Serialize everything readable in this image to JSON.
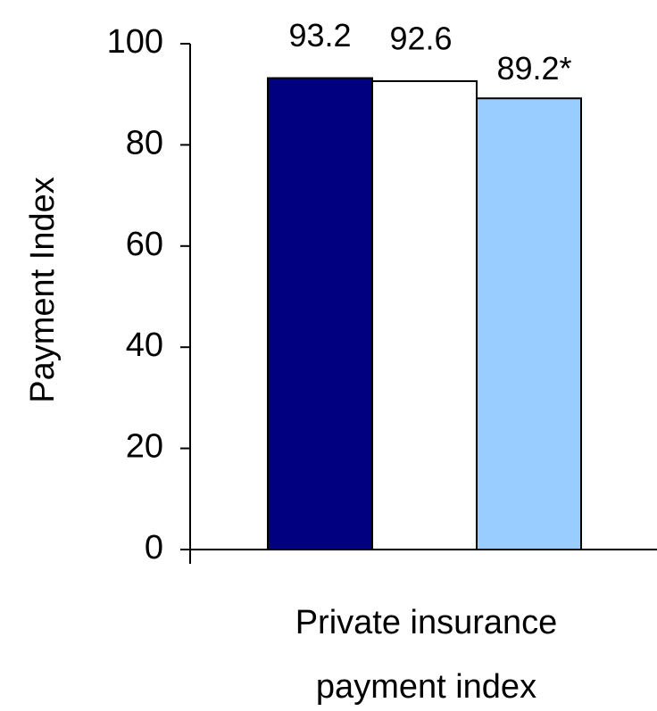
{
  "chart_data": {
    "type": "bar",
    "categories": [
      "Private insurance payment index"
    ],
    "category_lines": [
      "Private insurance",
      "payment index"
    ],
    "series": [
      {
        "values": [
          93.2
        ],
        "label": "93.2",
        "color": "#000080"
      },
      {
        "values": [
          92.6
        ],
        "label": "92.6",
        "color": "#ffffff"
      },
      {
        "values": [
          89.2
        ],
        "label": "89.2*",
        "color": "#99ccff"
      }
    ],
    "title": "",
    "xlabel": "",
    "ylabel": "Payment Index",
    "ylim": [
      0,
      100
    ],
    "yticks": [
      0,
      20,
      40,
      60,
      80,
      100
    ],
    "grid": false,
    "legend": "none",
    "bar_outline_color": "#000000"
  }
}
